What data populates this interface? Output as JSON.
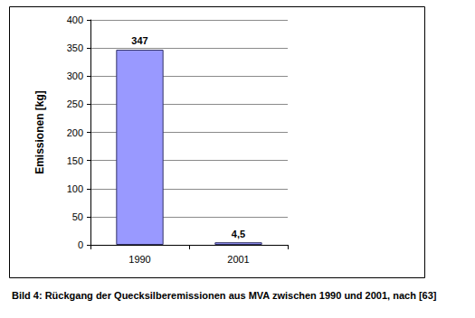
{
  "chart_data": {
    "type": "bar",
    "title": "Bild 4: Rückgang der Quecksilberemissionen aus MVA zwischen 1990 und 2001, nach [63]",
    "y_label": "Emissionen [kg]",
    "categories": [
      "1990",
      "2001"
    ],
    "values": [
      347,
      4.5
    ],
    "value_labels": [
      "347",
      "4,5"
    ],
    "data_labels": true,
    "color": "#9999ff",
    "ylim": [
      0,
      400
    ],
    "yticks": [
      0,
      50,
      100,
      150,
      200,
      250,
      300,
      350,
      400
    ],
    "grid": true
  }
}
